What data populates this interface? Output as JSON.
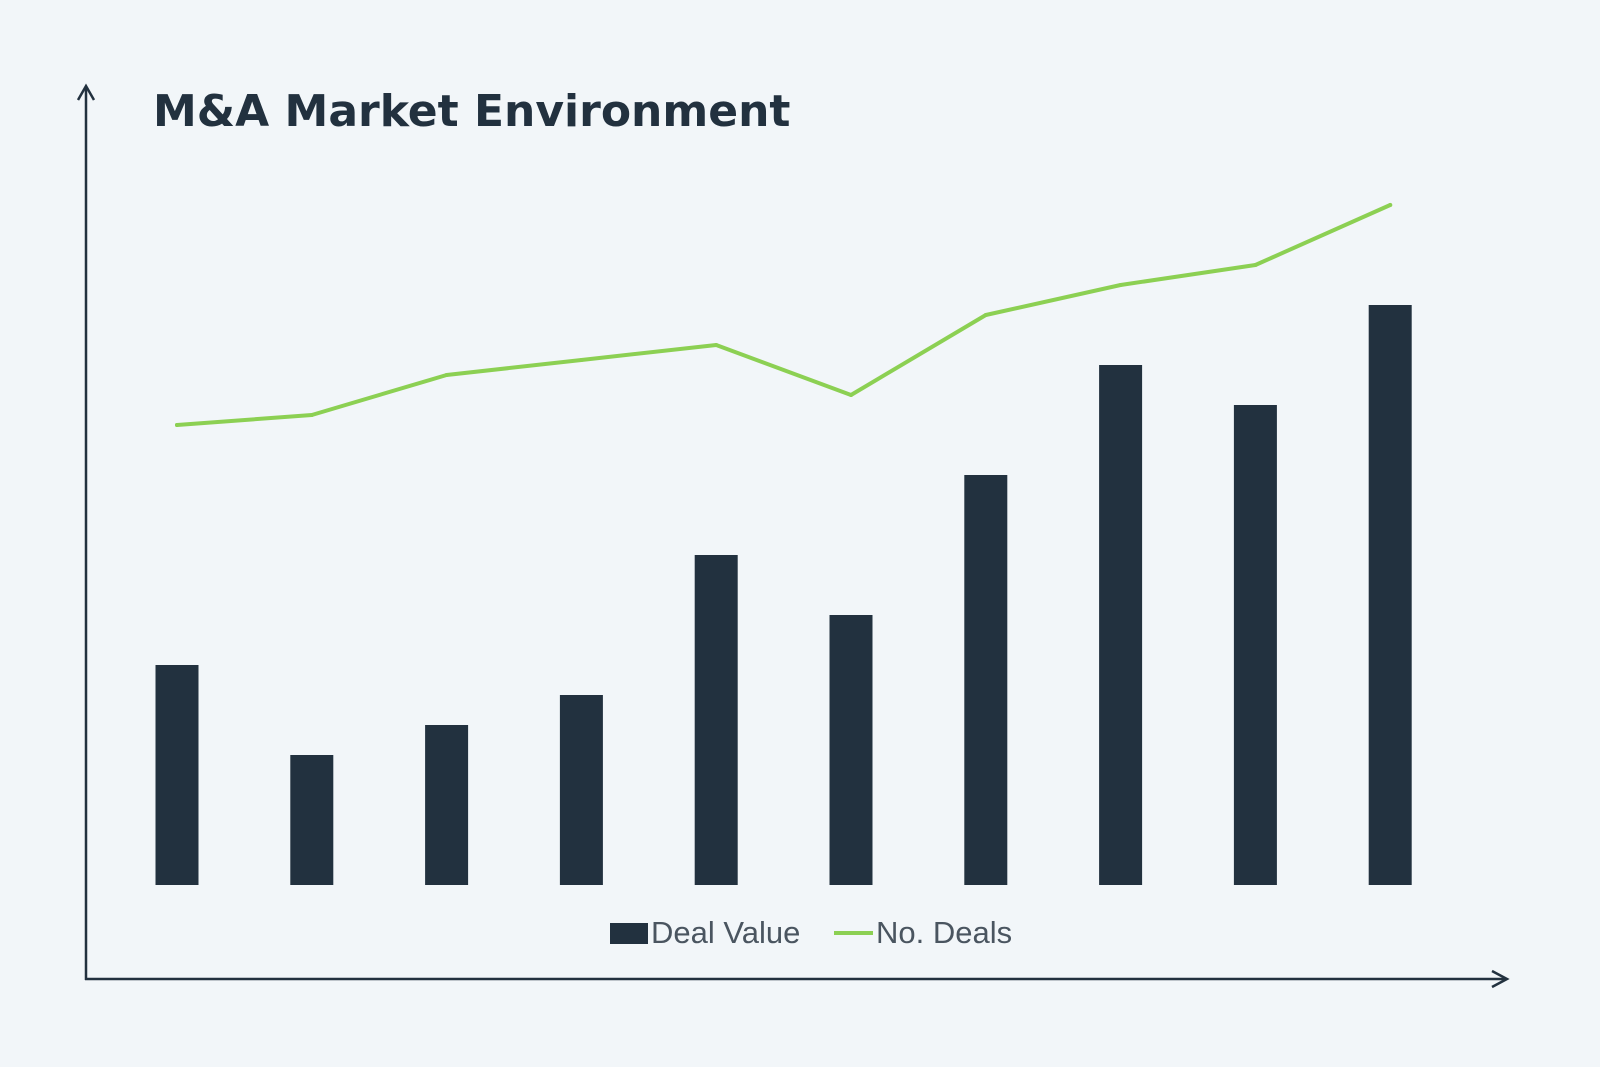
{
  "chart_data": {
    "type": "bar",
    "title": "M&A Market Environment",
    "xlabel": "",
    "ylabel": "",
    "categories": [
      "",
      "",
      "",
      "",
      "",
      "",
      "",
      "",
      "",
      ""
    ],
    "series": [
      {
        "name": "Deal Value",
        "type": "bar",
        "values": [
          2.2,
          1.3,
          1.6,
          1.9,
          3.3,
          2.7,
          4.1,
          5.2,
          4.8,
          5.8
        ]
      },
      {
        "name": "No. Deals",
        "type": "line",
        "values": [
          4.6,
          4.7,
          5.1,
          5.25,
          5.4,
          4.9,
          5.7,
          6.0,
          6.2,
          6.8
        ]
      }
    ],
    "ylim": [
      0,
      8.8
    ],
    "grid": false,
    "legend_position": "bottom-center",
    "colors": {
      "bar": "#22313f",
      "line": "#8cd053",
      "axis": "#22313f",
      "background": "#f2f6f9"
    }
  }
}
